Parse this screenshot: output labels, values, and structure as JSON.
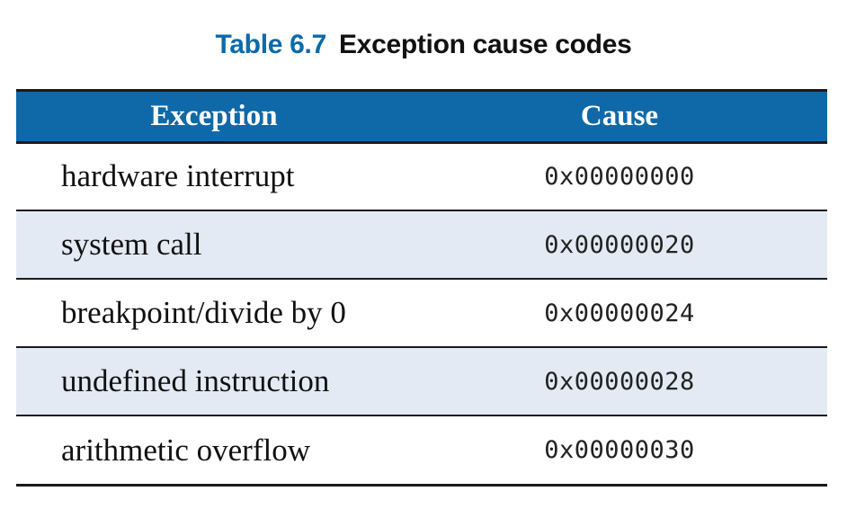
{
  "caption": {
    "number": "Table 6.7",
    "title": "Exception cause codes"
  },
  "table": {
    "headers": [
      "Exception",
      "Cause"
    ],
    "rows": [
      {
        "exception": "hardware interrupt",
        "cause": "0x00000000"
      },
      {
        "exception": "system call",
        "cause": "0x00000020"
      },
      {
        "exception": "breakpoint/divide by 0",
        "cause": "0x00000024"
      },
      {
        "exception": "undefined instruction",
        "cause": "0x00000028"
      },
      {
        "exception": "arithmetic overflow",
        "cause": "0x00000030"
      }
    ]
  },
  "colors": {
    "header_background": "#0f69a8",
    "caption_number": "#0a6aa8",
    "shaded_row": "#e3eaf3"
  }
}
